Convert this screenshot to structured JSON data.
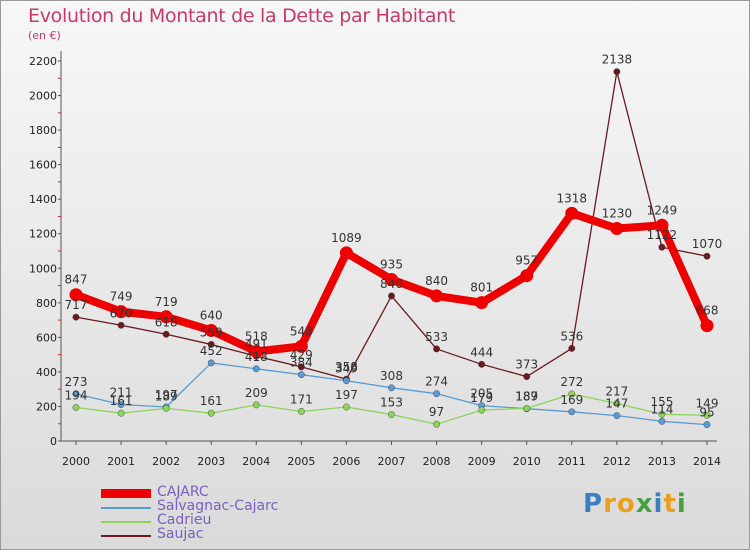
{
  "header": {
    "title": "Evolution du Montant de la Dette par Habitant",
    "subtitle": "(en €)"
  },
  "brand": {
    "text": "Proxiti",
    "letter_colors": [
      "#3a7fc2",
      "#e8a020",
      "#e8a020",
      "#4aa040",
      "#3a7fc2",
      "#e8a020",
      "#4aa040"
    ]
  },
  "chart_data": {
    "type": "line",
    "title": "Evolution du Montant de la Dette par Habitant",
    "subtitle": "(en €)",
    "xlabel": "",
    "ylabel": "",
    "x": [
      "2000",
      "2001",
      "2002",
      "2003",
      "2004",
      "2005",
      "2006",
      "2007",
      "2008",
      "2009",
      "2010",
      "2011",
      "2012",
      "2013",
      "2014"
    ],
    "ylim": [
      0,
      2200
    ],
    "yticks": [
      0,
      200,
      400,
      600,
      800,
      1000,
      1200,
      1400,
      1600,
      1800,
      2000,
      2200
    ],
    "grid": false,
    "legend_position": "bottom-left",
    "series": [
      {
        "name": "Saujac",
        "color": "#6b1a1f",
        "values": [
          717,
          670,
          618,
          559,
          491,
          429,
          358,
          840,
          533,
          444,
          373,
          536,
          2138,
          1122,
          1070
        ]
      },
      {
        "name": "Salvagnac-Cajarc",
        "color": "#5b9bd5",
        "values": [
          273,
          211,
          197,
          452,
          418,
          384,
          349,
          308,
          274,
          205,
          187,
          169,
          147,
          114,
          95
        ]
      },
      {
        "name": "Cadrieu",
        "color": "#8fd45a",
        "values": [
          194,
          161,
          189,
          161,
          209,
          171,
          197,
          153,
          97,
          179,
          189,
          272,
          217,
          155,
          149
        ]
      },
      {
        "name": "CAJARC",
        "color": "#ee0000",
        "values": [
          847,
          749,
          719,
          640,
          518,
          548,
          1089,
          935,
          840,
          801,
          957,
          1318,
          1230,
          1249,
          668
        ]
      }
    ],
    "legend": [
      "CAJARC",
      "Salvagnac-Cajarc",
      "Cadrieu",
      "Saujac"
    ]
  }
}
